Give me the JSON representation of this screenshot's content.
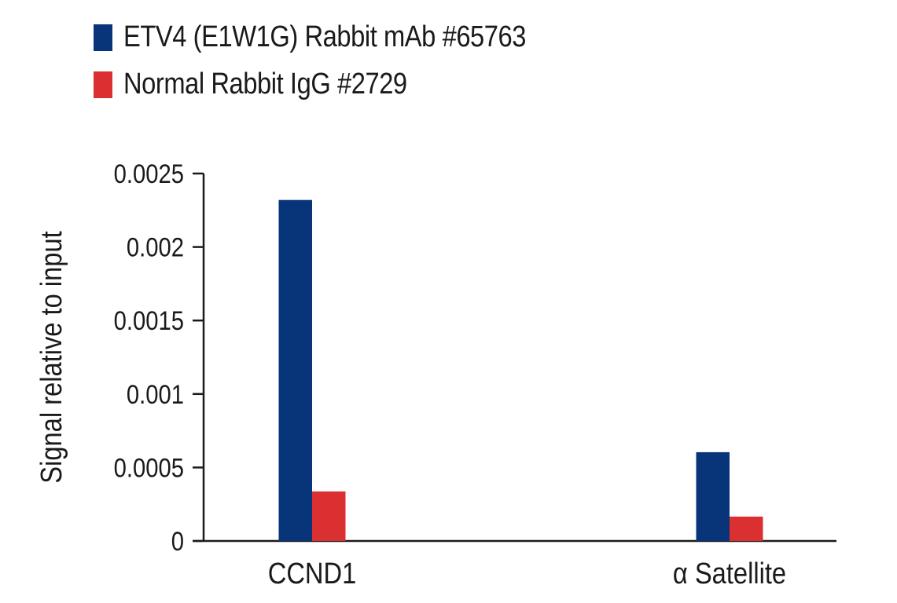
{
  "chart_data": {
    "type": "bar",
    "title": "",
    "xlabel": "",
    "ylabel": "Signal relative to input",
    "ylim": [
      0,
      0.0025
    ],
    "yticks": [
      "0",
      "0.0005",
      "0.001",
      "0.0015",
      "0.002",
      "0.0025"
    ],
    "grid": false,
    "legend_position": "top-left",
    "categories": [
      "CCND1",
      "α Satellite"
    ],
    "series": [
      {
        "name": "ETV4 (E1W1G) Rabbit mAb #65763",
        "color": "#08357a",
        "values": [
          0.00232,
          0.000604
        ]
      },
      {
        "name": "Normal Rabbit IgG #2729",
        "color": "#db3032",
        "values": [
          0.000337,
          0.000166
        ]
      }
    ]
  },
  "legend": {
    "items": [
      {
        "label": "ETV4 (E1W1G) Rabbit mAb #65763",
        "color": "#08357a"
      },
      {
        "label": "Normal Rabbit IgG #2729",
        "color": "#db3032"
      }
    ]
  }
}
